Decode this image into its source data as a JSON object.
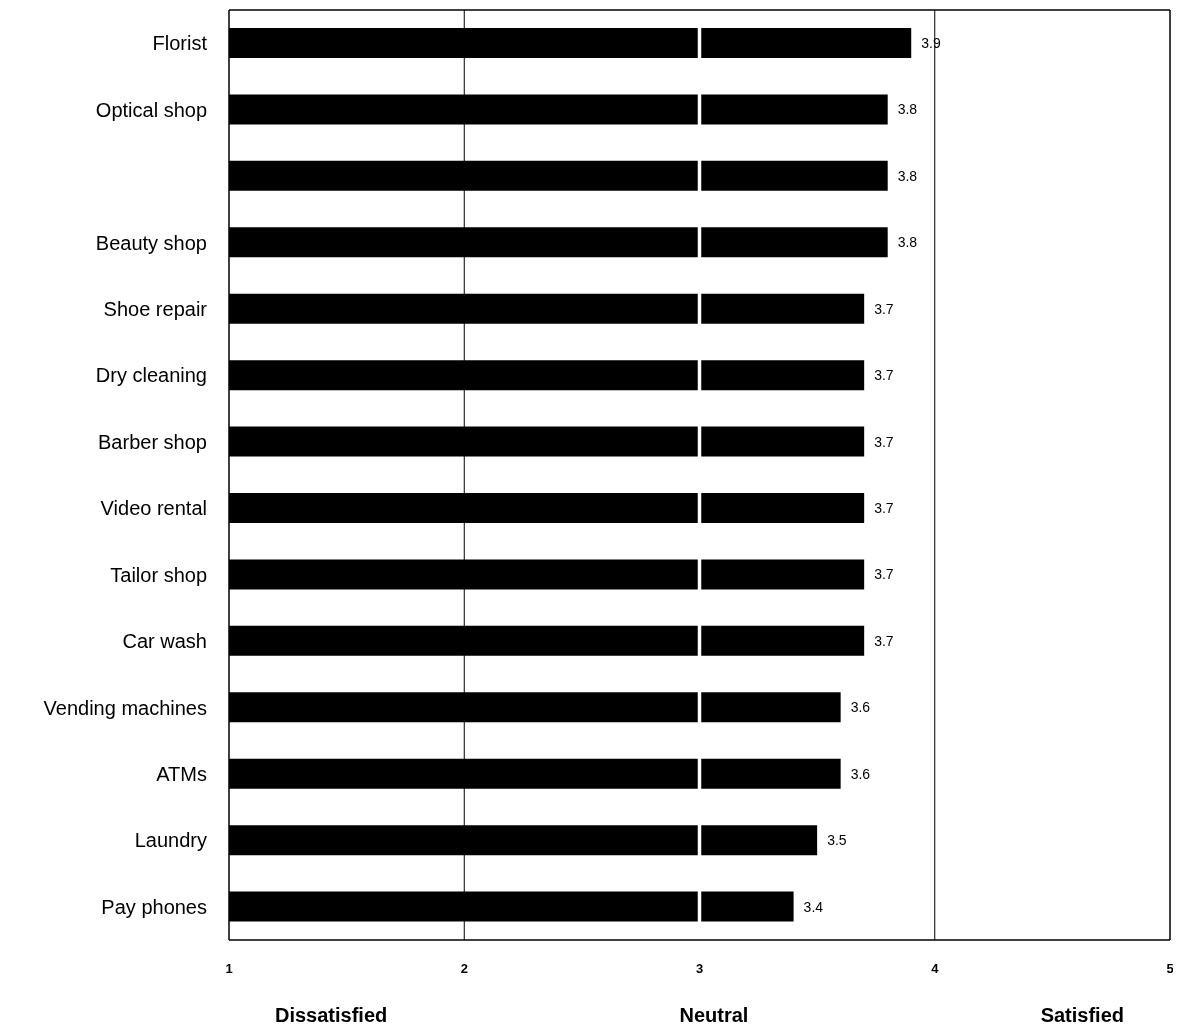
{
  "chart_data": {
    "type": "bar",
    "orientation": "horizontal",
    "categories": [
      "Florist",
      "Optical shop",
      null,
      "Beauty shop",
      "Shoe repair",
      "Dry cleaning",
      "Barber shop",
      "Video rental",
      "Tailor shop",
      "Car wash",
      "Vending machines",
      "ATMs",
      "Laundry",
      "Pay phones"
    ],
    "values": [
      3.9,
      3.8,
      3.8,
      3.8,
      3.7,
      3.7,
      3.7,
      3.7,
      3.7,
      3.7,
      3.6,
      3.6,
      3.5,
      3.4
    ],
    "color": "#000000",
    "xlim": [
      1,
      5
    ],
    "xticks": [
      1,
      2,
      3,
      4,
      5
    ],
    "data_labels": true,
    "ref_lines": [
      {
        "axis": "x",
        "value": 2,
        "color": "#000000"
      },
      {
        "axis": "x",
        "value": 3,
        "color": "#ffffff"
      },
      {
        "axis": "x",
        "value": 4,
        "color": "#000000"
      }
    ],
    "annotations": [
      "Dissatisfied",
      "Neutral",
      "Satisfied"
    ]
  }
}
